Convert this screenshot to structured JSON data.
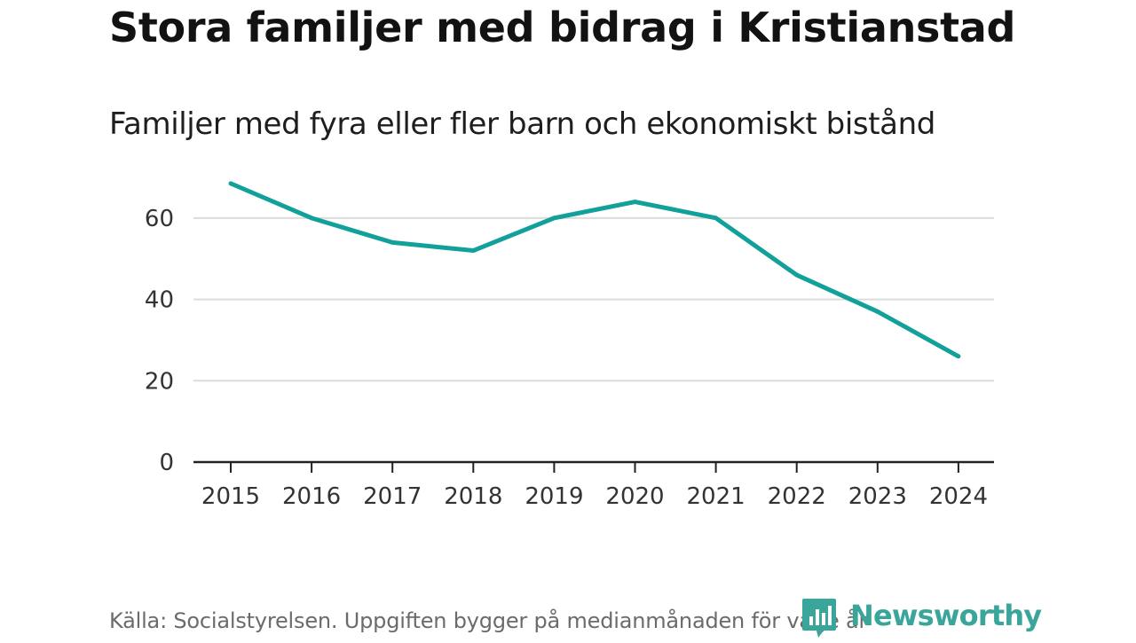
{
  "title": "Stora familjer med bidrag i Kristianstad",
  "subtitle": "Familjer med fyra eller fler barn och ekonomiskt bistånd",
  "source": "Källa: Socialstyrelsen. Uppgiften bygger på medianmånaden för varje år",
  "logo": {
    "text": "Newsworthy",
    "color": "#3aa59a",
    "icon": "bar-chart-speech-bubble-icon"
  },
  "colors": {
    "line": "#12a19a",
    "grid": "#dcdcdc",
    "axis": "#222222",
    "tick_text": "#333333"
  },
  "chart_data": {
    "type": "line",
    "title": "Stora familjer med bidrag i Kristianstad",
    "subtitle": "Familjer med fyra eller fler barn och ekonomiskt bistånd",
    "xlabel": "",
    "ylabel": "",
    "x": [
      "2015",
      "2016",
      "2017",
      "2018",
      "2019",
      "2020",
      "2021",
      "2022",
      "2023",
      "2024"
    ],
    "series": [
      {
        "name": "Familjer med fyra eller fler barn och ekonomiskt bistånd",
        "values": [
          68.5,
          60,
          54,
          52,
          60,
          64,
          60,
          46,
          37,
          26
        ]
      }
    ],
    "ylim": [
      0,
      70
    ],
    "yticks": [
      0,
      20,
      40,
      60
    ],
    "ytick_labels": [
      "0",
      "20",
      "40",
      "60"
    ],
    "grid": true,
    "legend": "none"
  }
}
